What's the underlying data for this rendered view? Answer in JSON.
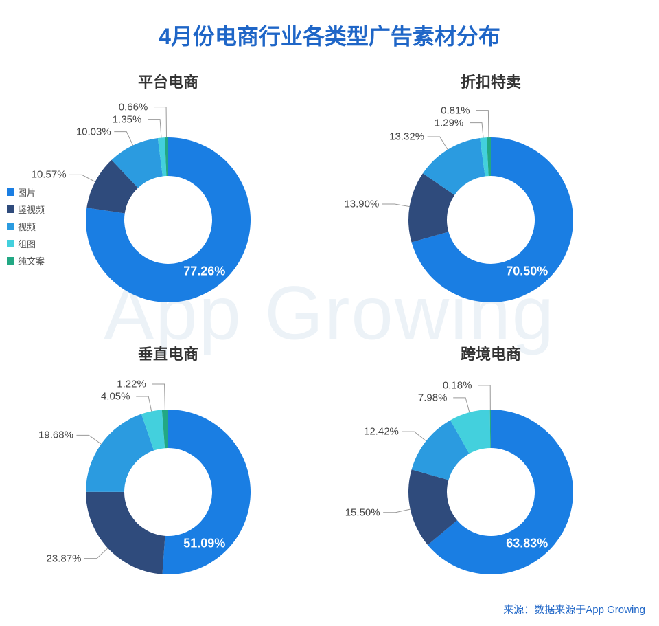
{
  "title": "4月份电商行业各类型广告素材分布",
  "title_color": "#1f66c7",
  "title_fontsize": 32,
  "background_color": "#ffffff",
  "watermark_text": "App Growing",
  "watermark_color": "#dde8f2",
  "source_text": "来源：数据来源于App Growing",
  "source_color": "#1f66c7",
  "legend": {
    "items": [
      {
        "label": "图片",
        "color": "#1a7ee3"
      },
      {
        "label": "竖视频",
        "color": "#2f4b7c"
      },
      {
        "label": "视频",
        "color": "#2b9be0"
      },
      {
        "label": "组图",
        "color": "#43d0dd"
      },
      {
        "label": "纯文案",
        "color": "#22a884"
      }
    ],
    "fontsize": 13,
    "text_color": "#555"
  },
  "donut_style": {
    "outer_radius": 120,
    "inner_radius": 64,
    "start_angle_deg": -90,
    "leader_line_color": "#999",
    "leader_line_width": 1,
    "center_fill": "#ffffff",
    "label_fontsize": 15,
    "label_color": "#444",
    "big_label_fontsize": 18,
    "big_label_color": "#ffffff",
    "big_label_fontweight": 700
  },
  "charts": [
    {
      "subtitle": "平台电商",
      "slices": [
        {
          "name": "图片",
          "value": 77.26,
          "color": "#1a7ee3",
          "label": "77.26%",
          "big": true
        },
        {
          "name": "竖视频",
          "value": 10.57,
          "color": "#2f4b7c",
          "label": "10.57%"
        },
        {
          "name": "视频",
          "value": 10.03,
          "color": "#2b9be0",
          "label": "10.03%"
        },
        {
          "name": "组图",
          "value": 1.35,
          "color": "#43d0dd",
          "label": "1.35%"
        },
        {
          "name": "纯文案",
          "value": 0.66,
          "color": "#22a884",
          "label": "0.66%"
        }
      ]
    },
    {
      "subtitle": "折扣特卖",
      "slices": [
        {
          "name": "图片",
          "value": 70.5,
          "color": "#1a7ee3",
          "label": "70.50%",
          "big": true
        },
        {
          "name": "竖视频",
          "value": 13.9,
          "color": "#2f4b7c",
          "label": "13.90%"
        },
        {
          "name": "视频",
          "value": 13.32,
          "color": "#2b9be0",
          "label": "13.32%"
        },
        {
          "name": "组图",
          "value": 1.29,
          "color": "#43d0dd",
          "label": "1.29%"
        },
        {
          "name": "纯文案",
          "value": 0.81,
          "color": "#22a884",
          "label": "0.81%"
        }
      ]
    },
    {
      "subtitle": "垂直电商",
      "slices": [
        {
          "name": "图片",
          "value": 51.09,
          "color": "#1a7ee3",
          "label": "51.09%",
          "big": true
        },
        {
          "name": "竖视频",
          "value": 23.87,
          "color": "#2f4b7c",
          "label": "23.87%"
        },
        {
          "name": "视频",
          "value": 19.68,
          "color": "#2b9be0",
          "label": "19.68%"
        },
        {
          "name": "组图",
          "value": 4.05,
          "color": "#43d0dd",
          "label": "4.05%"
        },
        {
          "name": "纯文案",
          "value": 1.22,
          "color": "#22a884",
          "label": "1.22%"
        }
      ]
    },
    {
      "subtitle": "跨境电商",
      "slices": [
        {
          "name": "图片",
          "value": 63.83,
          "color": "#1a7ee3",
          "label": "63.83%",
          "big": true
        },
        {
          "name": "竖视频",
          "value": 15.5,
          "color": "#2f4b7c",
          "label": "15.50%"
        },
        {
          "name": "视频",
          "value": 12.42,
          "color": "#2b9be0",
          "label": "12.42%"
        },
        {
          "name": "组图",
          "value": 7.98,
          "color": "#43d0dd",
          "label": "7.98%"
        },
        {
          "name": "纯文案",
          "value": 0.18,
          "color": "#22a884",
          "label": "0.18%"
        }
      ]
    }
  ]
}
